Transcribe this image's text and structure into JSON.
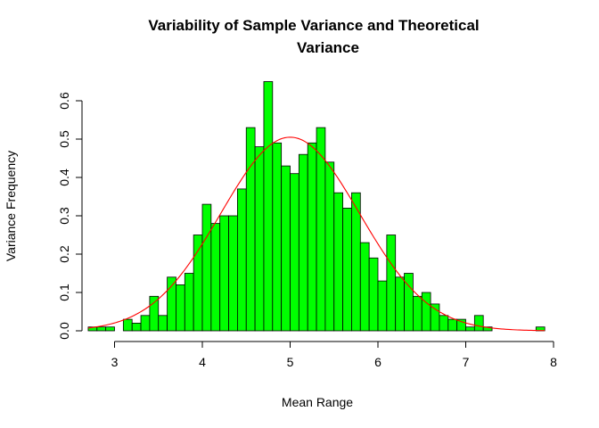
{
  "chart_data": {
    "type": "bar",
    "title_lines": [
      "Variability of Sample Variance and Theoretical",
      "Variance"
    ],
    "xlabel": "Mean Range",
    "ylabel": "Variance Frequency",
    "xlim": [
      2.7,
      7.9
    ],
    "ylim": [
      0,
      0.65
    ],
    "xticks": [
      "3",
      "4",
      "5",
      "6",
      "7",
      "8"
    ],
    "yticks": [
      "0.0",
      "0.1",
      "0.2",
      "0.3",
      "0.4",
      "0.5",
      "0.6"
    ],
    "bin_width": 0.1,
    "bins_start": [
      2.7,
      2.8,
      2.9,
      3.0,
      3.1,
      3.2,
      3.3,
      3.4,
      3.5,
      3.6,
      3.7,
      3.8,
      3.9,
      4.0,
      4.1,
      4.2,
      4.3,
      4.4,
      4.5,
      4.6,
      4.7,
      4.8,
      4.9,
      5.0,
      5.1,
      5.2,
      5.3,
      5.4,
      5.5,
      5.6,
      5.7,
      5.8,
      5.9,
      6.0,
      6.1,
      6.2,
      6.3,
      6.4,
      6.5,
      6.6,
      6.7,
      6.8,
      6.9,
      7.0,
      7.1,
      7.2,
      7.3,
      7.4,
      7.5,
      7.6,
      7.7,
      7.8
    ],
    "values": [
      0.01,
      0.01,
      0.01,
      0.0,
      0.03,
      0.02,
      0.04,
      0.09,
      0.04,
      0.14,
      0.12,
      0.15,
      0.25,
      0.33,
      0.28,
      0.3,
      0.3,
      0.37,
      0.53,
      0.48,
      0.65,
      0.49,
      0.43,
      0.41,
      0.46,
      0.49,
      0.53,
      0.44,
      0.36,
      0.32,
      0.36,
      0.23,
      0.19,
      0.13,
      0.25,
      0.14,
      0.15,
      0.09,
      0.1,
      0.07,
      0.04,
      0.03,
      0.03,
      0.01,
      0.04,
      0.01,
      0.0,
      0.0,
      0.0,
      0.0,
      0.0,
      0.01
    ],
    "curve": {
      "type": "normal-density",
      "mean": 5.0,
      "sd": 0.79,
      "xrange": [
        2.7,
        7.9
      ]
    },
    "bar_color": "#00ff00",
    "bar_border_color": "#000000",
    "curve_color": "#ff0000",
    "grid": false,
    "legend": "none"
  }
}
